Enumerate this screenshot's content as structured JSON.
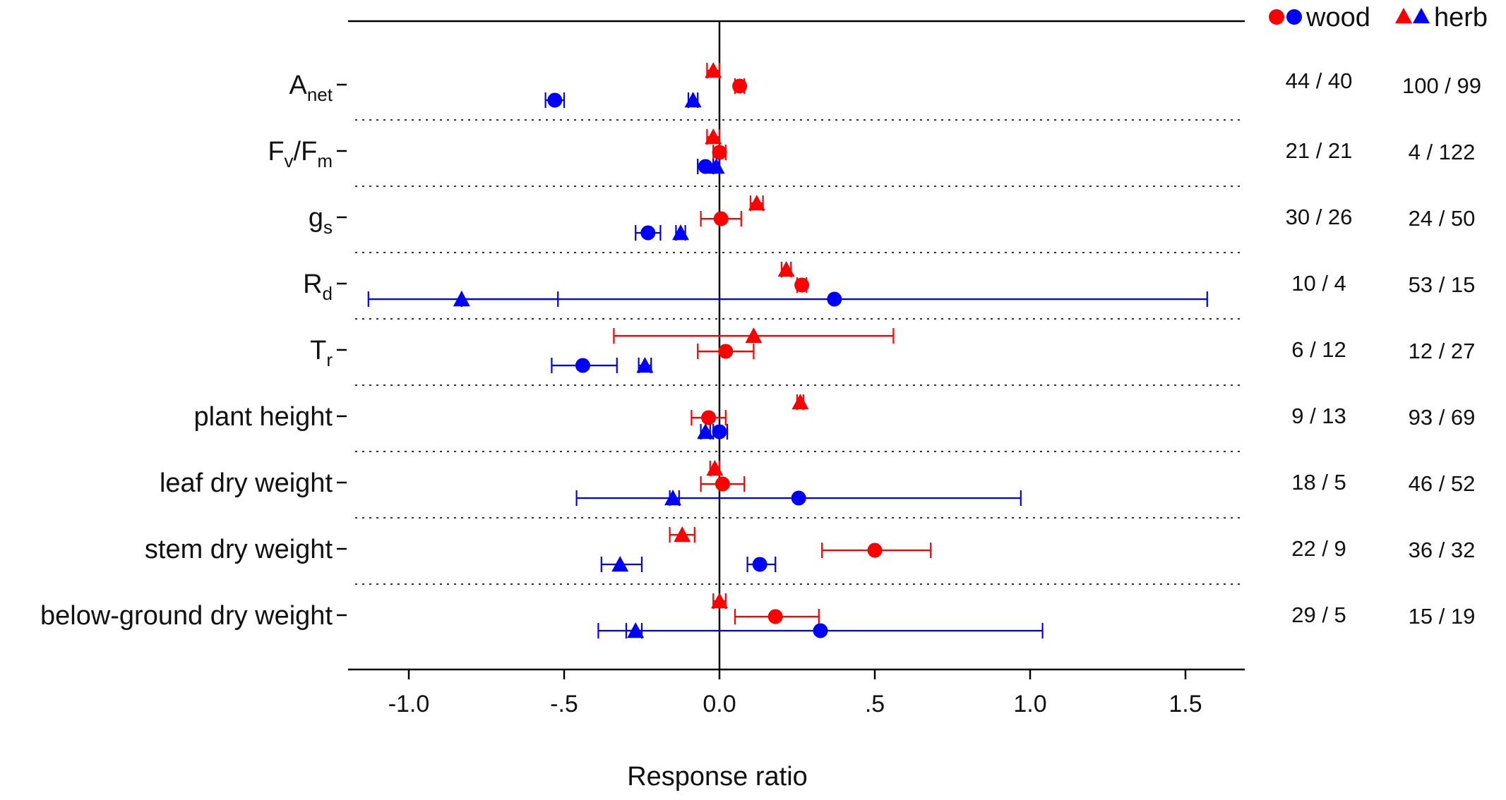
{
  "chart_data": {
    "type": "forest",
    "title": "",
    "xlabel": "Response ratio",
    "ylabel": "",
    "xlim": [
      -1.2,
      1.7
    ],
    "xticks": [
      {
        "value": -1.0,
        "label": "-1.0"
      },
      {
        "value": -0.5,
        "label": "-.5"
      },
      {
        "value": 0.0,
        "label": "0.0"
      },
      {
        "value": 0.5,
        "label": ".5"
      },
      {
        "value": 1.0,
        "label": "1.0"
      },
      {
        "value": 1.5,
        "label": "1.5"
      }
    ],
    "legend": {
      "position": "top-right",
      "entries": [
        {
          "label": "wood",
          "marker": "circle",
          "colors": [
            "#ff0000",
            "#0000ff"
          ]
        },
        {
          "label": "herb",
          "marker": "triangle",
          "colors": [
            "#ff0000",
            "#0000ff"
          ]
        }
      ]
    },
    "series_colors": {
      "red": "#ff0000",
      "blue": "#0000ff"
    },
    "categories": [
      {
        "label": {
          "main": "A",
          "sub": "net",
          "rest": ""
        },
        "counts": [
          "44 / 40",
          "100 / 99"
        ],
        "points": [
          {
            "group": "herb",
            "color": "red",
            "value": -0.02,
            "ci": [
              -0.04,
              0.0
            ]
          },
          {
            "group": "wood",
            "color": "red",
            "value": 0.065,
            "ci": [
              0.05,
              0.08
            ]
          },
          {
            "group": "wood",
            "color": "blue",
            "value": -0.53,
            "ci": [
              -0.56,
              -0.5
            ]
          },
          {
            "group": "herb",
            "color": "blue",
            "value": -0.085,
            "ci": [
              -0.1,
              -0.07
            ]
          }
        ]
      },
      {
        "label": {
          "main": "F",
          "sub": "v",
          "rest": "/F",
          "sub2": "m"
        },
        "counts": [
          "21 / 21",
          "4 / 122"
        ],
        "points": [
          {
            "group": "herb",
            "color": "red",
            "value": -0.02,
            "ci": [
              -0.04,
              0.0
            ]
          },
          {
            "group": "wood",
            "color": "red",
            "value": 0.0,
            "ci": [
              -0.02,
              0.02
            ]
          },
          {
            "group": "wood",
            "color": "blue",
            "value": -0.045,
            "ci": [
              -0.07,
              -0.02
            ]
          },
          {
            "group": "herb",
            "color": "blue",
            "value": -0.01,
            "ci": [
              -0.02,
              0.0
            ]
          }
        ]
      },
      {
        "label": {
          "main": "g",
          "sub": "s",
          "rest": ""
        },
        "counts": [
          "30 / 26",
          "24 / 50"
        ],
        "points": [
          {
            "group": "herb",
            "color": "red",
            "value": 0.12,
            "ci": [
              0.1,
              0.14
            ]
          },
          {
            "group": "wood",
            "color": "red",
            "value": 0.005,
            "ci": [
              -0.06,
              0.07
            ]
          },
          {
            "group": "wood",
            "color": "blue",
            "value": -0.23,
            "ci": [
              -0.27,
              -0.19
            ]
          },
          {
            "group": "herb",
            "color": "blue",
            "value": -0.125,
            "ci": [
              -0.14,
              -0.11
            ]
          }
        ]
      },
      {
        "label": {
          "main": "R",
          "sub": "d",
          "rest": ""
        },
        "counts": [
          "10 / 4",
          "53 / 15"
        ],
        "points": [
          {
            "group": "herb",
            "color": "red",
            "value": 0.215,
            "ci": [
              0.2,
              0.23
            ]
          },
          {
            "group": "wood",
            "color": "red",
            "value": 0.265,
            "ci": [
              0.25,
              0.28
            ]
          },
          {
            "group": "wood",
            "color": "blue",
            "value": 0.37,
            "ci": [
              -0.83,
              1.57
            ]
          },
          {
            "group": "herb",
            "color": "blue",
            "value": -0.83,
            "ci": [
              -1.13,
              -0.52
            ]
          }
        ]
      },
      {
        "label": {
          "main": "T",
          "sub": "r",
          "rest": ""
        },
        "counts": [
          "6 / 12",
          "12 / 27"
        ],
        "points": [
          {
            "group": "herb",
            "color": "red",
            "value": 0.11,
            "ci": [
              -0.34,
              0.56
            ]
          },
          {
            "group": "wood",
            "color": "red",
            "value": 0.02,
            "ci": [
              -0.07,
              0.11
            ]
          },
          {
            "group": "wood",
            "color": "blue",
            "value": -0.44,
            "ci": [
              -0.54,
              -0.33
            ]
          },
          {
            "group": "herb",
            "color": "blue",
            "value": -0.24,
            "ci": [
              -0.26,
              -0.22
            ]
          }
        ]
      },
      {
        "label": {
          "main": "plant height",
          "sub": "",
          "rest": ""
        },
        "counts": [
          "9 / 13",
          "93 / 69"
        ],
        "points": [
          {
            "group": "herb",
            "color": "red",
            "value": 0.26,
            "ci": [
              0.25,
              0.27
            ]
          },
          {
            "group": "wood",
            "color": "red",
            "value": -0.035,
            "ci": [
              -0.09,
              0.02
            ]
          },
          {
            "group": "wood",
            "color": "blue",
            "value": 0.0,
            "ci": [
              -0.02,
              0.025
            ]
          },
          {
            "group": "herb",
            "color": "blue",
            "value": -0.045,
            "ci": [
              -0.06,
              -0.03
            ]
          }
        ]
      },
      {
        "label": {
          "main": "leaf dry weight",
          "sub": "",
          "rest": ""
        },
        "counts": [
          "18 / 5",
          "46 / 52"
        ],
        "points": [
          {
            "group": "herb",
            "color": "red",
            "value": -0.015,
            "ci": [
              -0.03,
              0.0
            ]
          },
          {
            "group": "wood",
            "color": "red",
            "value": 0.01,
            "ci": [
              -0.06,
              0.08
            ]
          },
          {
            "group": "wood",
            "color": "blue",
            "value": 0.255,
            "ci": [
              -0.46,
              0.97
            ]
          },
          {
            "group": "herb",
            "color": "blue",
            "value": -0.15,
            "ci": [
              -0.16,
              -0.13
            ]
          }
        ]
      },
      {
        "label": {
          "main": "stem dry weight",
          "sub": "",
          "rest": ""
        },
        "counts": [
          "22 / 9",
          "36 / 32"
        ],
        "points": [
          {
            "group": "herb",
            "color": "red",
            "value": -0.12,
            "ci": [
              -0.16,
              -0.08
            ]
          },
          {
            "group": "wood",
            "color": "red",
            "value": 0.5,
            "ci": [
              0.33,
              0.68
            ]
          },
          {
            "group": "wood",
            "color": "blue",
            "value": 0.13,
            "ci": [
              0.09,
              0.18
            ]
          },
          {
            "group": "herb",
            "color": "blue",
            "value": -0.32,
            "ci": [
              -0.38,
              -0.25
            ]
          }
        ]
      },
      {
        "label": {
          "main": "below-ground dry weight",
          "sub": "",
          "rest": ""
        },
        "counts": [
          "29 / 5",
          "15 / 19"
        ],
        "points": [
          {
            "group": "herb",
            "color": "red",
            "value": 0.0,
            "ci": [
              -0.02,
              0.02
            ]
          },
          {
            "group": "wood",
            "color": "red",
            "value": 0.18,
            "ci": [
              0.05,
              0.32
            ]
          },
          {
            "group": "wood",
            "color": "blue",
            "value": 0.325,
            "ci": [
              -0.39,
              1.04
            ]
          },
          {
            "group": "herb",
            "color": "blue",
            "value": -0.27,
            "ci": [
              -0.3,
              -0.25
            ]
          }
        ]
      }
    ]
  }
}
